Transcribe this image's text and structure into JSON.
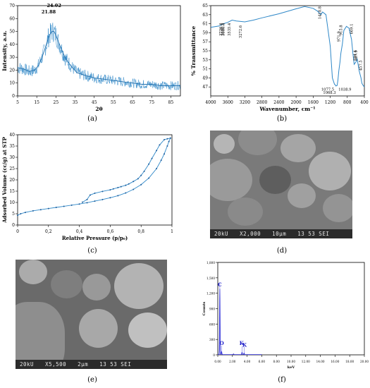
{
  "panels": {
    "a": {
      "caption": "(a)",
      "chart_data": {
        "type": "line",
        "ylabel": "Intensity, a.u.",
        "xlabel": "2θ",
        "xlim": [
          5,
          90
        ],
        "ylim": [
          0,
          70
        ],
        "xticks": [
          5,
          15,
          25,
          35,
          45,
          55,
          65,
          75,
          85
        ],
        "yticks": [
          0,
          10,
          20,
          30,
          40,
          50,
          60,
          70
        ],
        "annotations": [
          "24.02",
          "21.88"
        ],
        "series": [
          {
            "x": [
              5,
              8,
              11,
              14,
              16,
              18,
              20,
              21,
              22,
              23,
              24,
              25,
              26,
              28,
              30,
              33,
              36,
              40,
              45,
              50,
              55,
              60,
              65,
              70,
              75,
              80,
              85,
              90
            ],
            "values": [
              22,
              21,
              19,
              20,
              24,
              31,
              40,
              45,
              48,
              50,
              50,
              47,
              43,
              36,
              29,
              23,
              18,
              16,
              14,
              13,
              12,
              11,
              10,
              9,
              9,
              8,
              8,
              8
            ]
          }
        ]
      }
    },
    "b": {
      "caption": "(b)",
      "chart_data": {
        "type": "line",
        "ylabel": "% Transmittance",
        "xlabel": "Wavenumber, cm⁻¹",
        "xlim": [
          4000,
          400
        ],
        "ylim": [
          45,
          65
        ],
        "xticks": [
          4000,
          3600,
          3200,
          2800,
          2400,
          2000,
          1600,
          1200,
          800,
          400
        ],
        "yticks": [
          47,
          49,
          51,
          53,
          55,
          57,
          59,
          61,
          63,
          65
        ],
        "annotations": [
          "3736.4",
          "3696.5",
          "3680.4",
          "3535.4",
          "3272.6",
          "1418.8",
          "1077.5",
          "1068.3",
          "1038.9",
          "971.9",
          "915.8",
          "669.1",
          "594.4",
          "567.9",
          "457.5"
        ],
        "series": [
          {
            "x": [
              4000,
              3800,
              3700,
              3600,
              3500,
              3400,
              3300,
              3200,
              3000,
              2800,
              2400,
              2000,
              1800,
              1600,
              1500,
              1418,
              1380,
              1300,
              1200,
              1150,
              1100,
              1077,
              1068,
              1039,
              1020,
              1000,
              972,
              950,
              916,
              880,
              820,
              760,
              700,
              669,
              640,
              594,
              568,
              520,
              480,
              457,
              420,
              400
            ],
            "values": [
              60.2,
              60.5,
              61.0,
              61.3,
              61.8,
              61.6,
              61.5,
              61.4,
              61.8,
              62.3,
              63.2,
              64.3,
              64.8,
              64.4,
              63.8,
              63.0,
              63.6,
              63.0,
              56.0,
              49.0,
              47.6,
              47.4,
              47.2,
              47.3,
              48.5,
              50.5,
              52.5,
              54.5,
              56.5,
              59.5,
              60.4,
              60.0,
              57.5,
              54.5,
              52.0,
              52.6,
              53.2,
              50.5,
              49.0,
              47.8,
              47.2,
              47.0
            ]
          }
        ]
      }
    },
    "c": {
      "caption": "(c)",
      "chart_data": {
        "type": "line",
        "ylabel": "Adsorbed Volume (cc/g) at STP",
        "xlabel": "Relative Pressure (p/p₀)",
        "xlim": [
          0,
          1
        ],
        "ylim": [
          0,
          40
        ],
        "xticks": [
          0,
          0.2,
          0.4,
          0.6,
          0.8,
          1
        ],
        "xtick_labels": [
          "0",
          "0,2",
          "0,4",
          "0,6",
          "0,8",
          "1"
        ],
        "yticks": [
          0,
          5,
          10,
          15,
          20,
          25,
          30,
          35,
          40
        ],
        "series": [
          {
            "x": [
              0.0,
              0.02,
              0.05,
              0.1,
              0.15,
              0.2,
              0.25,
              0.3,
              0.35,
              0.4,
              0.45,
              0.5,
              0.55,
              0.6,
              0.65,
              0.7,
              0.75,
              0.8,
              0.85,
              0.9,
              0.93,
              0.95,
              0.97,
              0.98,
              0.99
            ],
            "values": [
              4.3,
              5.0,
              5.6,
              6.3,
              6.8,
              7.3,
              7.8,
              8.3,
              8.8,
              9.3,
              9.9,
              10.6,
              11.3,
              12.1,
              13.0,
              14.2,
              15.8,
              17.9,
              20.8,
              25.0,
              28.7,
              31.5,
              35.0,
              37.0,
              38.5
            ]
          },
          {
            "x": [
              0.99,
              0.97,
              0.95,
              0.92,
              0.9,
              0.87,
              0.85,
              0.82,
              0.8,
              0.78,
              0.75,
              0.72,
              0.7,
              0.67,
              0.65,
              0.62,
              0.6,
              0.55,
              0.5,
              0.47,
              0.45,
              0.42
            ],
            "values": [
              38.5,
              38.2,
              37.8,
              35.5,
              33.0,
              29.5,
              27.0,
              23.8,
              22.0,
              20.5,
              19.3,
              18.2,
              17.6,
              17.0,
              16.6,
              16.0,
              15.6,
              14.9,
              14.1,
              13.3,
              11.3,
              10.1
            ]
          }
        ]
      }
    },
    "d": {
      "caption": "(d)",
      "sem_bar": {
        "kv": "20kU",
        "mag": "X2,000",
        "scale": "10μm",
        "label": "13 53 SEI"
      }
    },
    "e": {
      "caption": "(e)",
      "sem_bar": {
        "kv": "20kU",
        "mag": "X5,500",
        "scale": "2μm",
        "label": "13 53 SEI"
      }
    },
    "f": {
      "caption": "(f)",
      "chart_data": {
        "type": "line",
        "ylabel": "Counts",
        "xlabel": "keV",
        "xlim": [
          0,
          20
        ],
        "ylim": [
          0,
          1800
        ],
        "yticks": [
          0,
          300,
          600,
          900,
          1200,
          1500,
          1800
        ],
        "ytick_labels": [
          "0",
          "300",
          "600",
          "900",
          "1,200",
          "1,500",
          "1,800"
        ],
        "xticks": [
          0,
          2,
          4,
          6,
          8,
          10,
          12,
          14,
          16,
          18,
          20
        ],
        "xtick_labels": [
          "0.00",
          "2.00",
          "4.00",
          "6.00",
          "8.00",
          "10.00",
          "12.00",
          "14.00",
          "16.00",
          "18.00",
          "20.00"
        ],
        "peak_labels": [
          "C",
          "O",
          "K",
          "K"
        ],
        "peaks": [
          {
            "label": "C",
            "keV": 0.28,
            "counts": 1280
          },
          {
            "label": "O",
            "keV": 0.52,
            "counts": 60
          },
          {
            "label": "K",
            "keV": 3.31,
            "counts": 45
          },
          {
            "label": "K",
            "keV": 3.59,
            "counts": 30
          }
        ]
      },
      "colors": {
        "spectrum": "#2a2ad8",
        "peak_label": "#1e1ec8"
      }
    }
  }
}
